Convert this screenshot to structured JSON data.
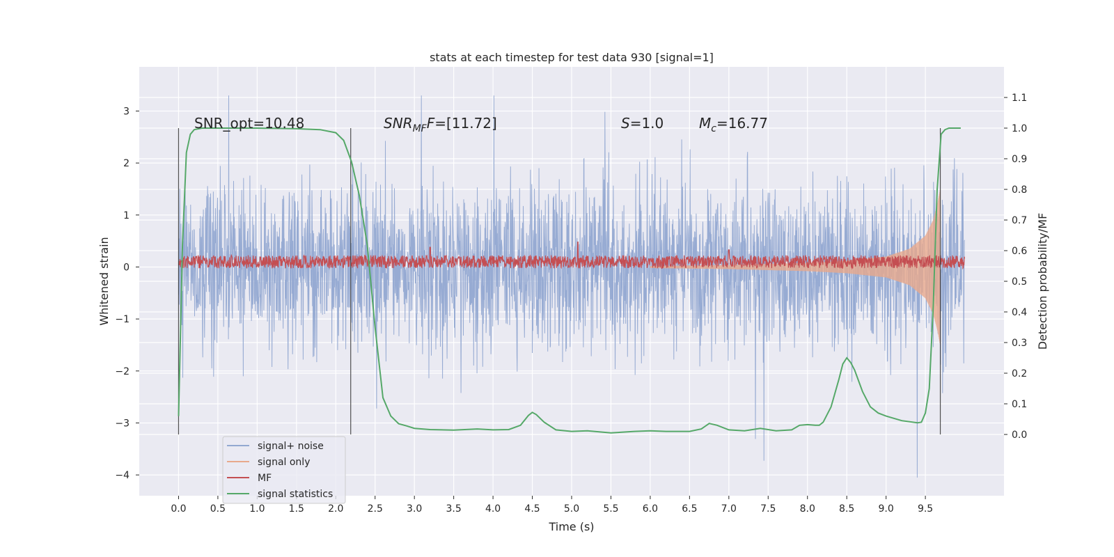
{
  "chart_data": {
    "type": "line",
    "title": "stats at each timestep for test data 930 [signal=1]",
    "xlabel": "Time (s)",
    "ylabel": "Whitened strain",
    "ylabel_right": "Detection probability/MF",
    "xlim": [
      -0.5,
      10.5
    ],
    "ylim": [
      -4.4,
      3.85
    ],
    "ylim_right": [
      -0.2,
      1.2
    ],
    "xticks": [
      0.0,
      0.5,
      1.0,
      1.5,
      2.0,
      2.5,
      3.0,
      3.5,
      4.0,
      4.5,
      5.0,
      5.5,
      6.0,
      6.5,
      7.0,
      7.5,
      8.0,
      8.5,
      9.0,
      9.5
    ],
    "xtick_labels": [
      "0.0",
      "0.5",
      "1.0",
      "1.5",
      "2.0",
      "2.5",
      "3.0",
      "3.5",
      "4.0",
      "4.5",
      "5.0",
      "5.5",
      "6.0",
      "6.5",
      "7.0",
      "7.5",
      "8.0",
      "8.5",
      "9.0",
      "9.5"
    ],
    "yticks": [
      -4,
      -3,
      -2,
      -1,
      0,
      1,
      2,
      3
    ],
    "ytick_labels": [
      "−4",
      "−3",
      "−2",
      "−1",
      "0",
      "1",
      "2",
      "3"
    ],
    "yticks_right": [
      0.0,
      0.1,
      0.2,
      0.3,
      0.4,
      0.5,
      0.6,
      0.7,
      0.8,
      0.9,
      1.0,
      1.1
    ],
    "ytick_labels_right": [
      "0.0",
      "0.1",
      "0.2",
      "0.3",
      "0.4",
      "0.5",
      "0.6",
      "0.7",
      "0.8",
      "0.9",
      "1.0",
      "1.1"
    ],
    "grid": true,
    "legend_position": "lower-left",
    "annotations": {
      "snr_opt": "SNR_opt=10.48",
      "snr_mf_label": "SNR",
      "snr_mf_sub": "MF",
      "snr_mf_value": "=[11.72]",
      "s_label": "S",
      "s_value": "=1.0",
      "mc_label": "M",
      "mc_sub": "c",
      "mc_value": "=16.77"
    },
    "vertical_markers": [
      0.0,
      2.19,
      9.69
    ],
    "series": [
      {
        "name": "signal+ noise",
        "color": "#92a8d1",
        "axis": "left",
        "envelope_x": [
          0.0,
          10.0
        ],
        "envelope_typical": [
          -1.6,
          1.6
        ],
        "envelope_extreme": [
          -4.05,
          3.3
        ]
      },
      {
        "name": "signal only",
        "color": "#e8a98c",
        "axis": "left",
        "x": [
          6.0,
          7.0,
          8.0,
          8.5,
          9.0,
          9.3,
          9.5,
          9.6,
          9.65,
          9.69
        ],
        "amplitude": [
          0.02,
          0.04,
          0.08,
          0.12,
          0.2,
          0.35,
          0.6,
          0.9,
          1.2,
          1.5
        ]
      },
      {
        "name": "MF",
        "color": "#c44e52",
        "axis": "left",
        "x_range": [
          0.0,
          10.0
        ],
        "center": 0.1,
        "band": [
          0.0,
          0.25
        ],
        "peaks": [
          {
            "x": 3.2,
            "y": 0.38
          },
          {
            "x": 5.08,
            "y": 0.48
          },
          {
            "x": 7.0,
            "y": 0.33
          }
        ]
      },
      {
        "name": "signal statistics",
        "color": "#55a868",
        "axis": "right",
        "x": [
          0.0,
          0.05,
          0.1,
          0.15,
          0.2,
          0.3,
          0.5,
          1.0,
          1.5,
          1.8,
          2.0,
          2.1,
          2.2,
          2.3,
          2.4,
          2.5,
          2.6,
          2.7,
          2.8,
          2.9,
          3.0,
          3.2,
          3.5,
          3.8,
          4.0,
          4.2,
          4.35,
          4.45,
          4.5,
          4.55,
          4.65,
          4.8,
          5.0,
          5.2,
          5.5,
          5.8,
          6.0,
          6.2,
          6.5,
          6.65,
          6.75,
          6.85,
          7.0,
          7.2,
          7.4,
          7.6,
          7.8,
          7.9,
          8.0,
          8.1,
          8.15,
          8.2,
          8.3,
          8.4,
          8.45,
          8.5,
          8.55,
          8.6,
          8.7,
          8.8,
          8.9,
          9.0,
          9.2,
          9.4,
          9.45,
          9.5,
          9.55,
          9.6,
          9.65,
          9.7,
          9.75,
          9.8,
          9.9,
          9.95
        ],
        "y": [
          0.06,
          0.62,
          0.92,
          0.98,
          0.995,
          1.0,
          1.0,
          1.0,
          0.998,
          0.995,
          0.985,
          0.96,
          0.89,
          0.78,
          0.62,
          0.35,
          0.12,
          0.06,
          0.035,
          0.028,
          0.02,
          0.016,
          0.014,
          0.018,
          0.015,
          0.016,
          0.03,
          0.062,
          0.072,
          0.065,
          0.04,
          0.015,
          0.01,
          0.012,
          0.005,
          0.01,
          0.012,
          0.01,
          0.01,
          0.018,
          0.036,
          0.03,
          0.015,
          0.012,
          0.02,
          0.012,
          0.015,
          0.03,
          0.032,
          0.03,
          0.03,
          0.04,
          0.09,
          0.18,
          0.23,
          0.25,
          0.235,
          0.21,
          0.14,
          0.09,
          0.07,
          0.06,
          0.045,
          0.038,
          0.04,
          0.07,
          0.15,
          0.42,
          0.8,
          0.98,
          0.995,
          1.0,
          1.0,
          1.0
        ]
      }
    ]
  }
}
